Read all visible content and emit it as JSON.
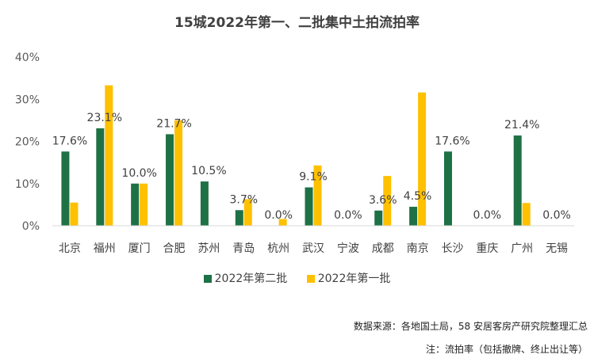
{
  "chart_data": {
    "type": "bar",
    "title": "15城2022年第一、二批集中土拍流拍率",
    "categories": [
      "北京",
      "福州",
      "厦门",
      "合肥",
      "苏州",
      "青岛",
      "杭州",
      "武汉",
      "宁波",
      "成都",
      "南京",
      "长沙",
      "重庆",
      "广州",
      "无锡"
    ],
    "series": [
      {
        "name": "2022年第二批",
        "color": "#1e7145",
        "values": [
          17.6,
          23.1,
          10.0,
          21.7,
          10.5,
          3.7,
          0.0,
          9.1,
          0.0,
          3.6,
          4.5,
          17.6,
          0.0,
          21.4,
          0.0
        ],
        "labels": [
          "17.6%",
          "23.1%",
          "10.0%",
          "21.7%",
          "10.5%",
          "3.7%",
          "0.0%",
          "9.1%",
          "0.0%",
          "3.6%",
          "4.5%",
          "17.6%",
          "0.0%",
          "21.4%",
          "0.0%"
        ]
      },
      {
        "name": "2022年第一批",
        "color": "#ffc000",
        "values": [
          5.5,
          33.3,
          10.0,
          25.0,
          0.0,
          6.3,
          1.6,
          14.3,
          0.0,
          11.8,
          31.6,
          0.0,
          0.0,
          5.4,
          0.0
        ]
      }
    ],
    "ylim": [
      0,
      40
    ],
    "yticks": [
      "0%",
      "10%",
      "20%",
      "30%",
      "40%"
    ],
    "grid": false,
    "legend": "bottom"
  },
  "notes": {
    "source": "数据来源：各地国土局，58 安居客房产研究院整理汇总",
    "definition": "注：流拍率（包括撤牌、终止出让等）"
  }
}
